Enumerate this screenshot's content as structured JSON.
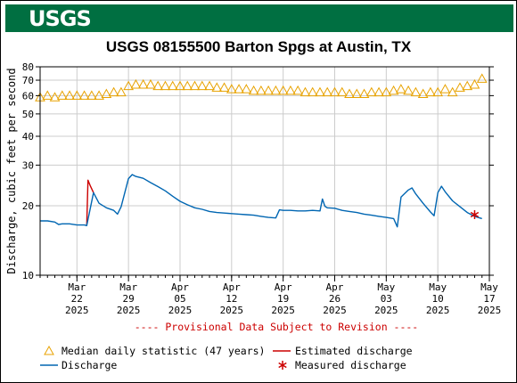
{
  "header": {
    "logo_text": "USGS"
  },
  "chart_data": {
    "type": "line",
    "title": "USGS 08155500 Barton Spgs at Austin, TX",
    "ylabel": "Discharge, cubic feet per second",
    "xlabel": "",
    "y_scale": "log",
    "ylim": [
      10,
      80
    ],
    "y_ticks": [
      10,
      20,
      30,
      40,
      50,
      60,
      70,
      80
    ],
    "xlim": [
      "2025-03-17",
      "2025-05-17"
    ],
    "x_ticks": [
      {
        "date": "2025-03-22",
        "label": [
          "Mar",
          "22",
          "2025"
        ]
      },
      {
        "date": "2025-03-29",
        "label": [
          "Mar",
          "29",
          "2025"
        ]
      },
      {
        "date": "2025-04-05",
        "label": [
          "Apr",
          "05",
          "2025"
        ]
      },
      {
        "date": "2025-04-12",
        "label": [
          "Apr",
          "12",
          "2025"
        ]
      },
      {
        "date": "2025-04-19",
        "label": [
          "Apr",
          "19",
          "2025"
        ]
      },
      {
        "date": "2025-04-26",
        "label": [
          "Apr",
          "26",
          "2025"
        ]
      },
      {
        "date": "2025-05-03",
        "label": [
          "May",
          "03",
          "2025"
        ]
      },
      {
        "date": "2025-05-10",
        "label": [
          "May",
          "10",
          "2025"
        ]
      },
      {
        "date": "2025-05-17",
        "label": [
          "May",
          "17",
          "2025"
        ]
      }
    ],
    "grid": true,
    "note": "---- Provisional Data Subject to Revision ----",
    "series": [
      {
        "name": "Median daily statistic (47 years)",
        "kind": "markers",
        "marker": "triangle",
        "color": "#e8a200",
        "points": [
          [
            "2025-03-17",
            59
          ],
          [
            "2025-03-18",
            60
          ],
          [
            "2025-03-19",
            59
          ],
          [
            "2025-03-20",
            60
          ],
          [
            "2025-03-21",
            60
          ],
          [
            "2025-03-22",
            60
          ],
          [
            "2025-03-23",
            60
          ],
          [
            "2025-03-24",
            60
          ],
          [
            "2025-03-25",
            60
          ],
          [
            "2025-03-26",
            61
          ],
          [
            "2025-03-27",
            62
          ],
          [
            "2025-03-28",
            62
          ],
          [
            "2025-03-29",
            66
          ],
          [
            "2025-03-30",
            67
          ],
          [
            "2025-03-31",
            67
          ],
          [
            "2025-04-01",
            67
          ],
          [
            "2025-04-02",
            66
          ],
          [
            "2025-04-03",
            66
          ],
          [
            "2025-04-04",
            66
          ],
          [
            "2025-04-05",
            66
          ],
          [
            "2025-04-06",
            66
          ],
          [
            "2025-04-07",
            66
          ],
          [
            "2025-04-08",
            66
          ],
          [
            "2025-04-09",
            66
          ],
          [
            "2025-04-10",
            65
          ],
          [
            "2025-04-11",
            65
          ],
          [
            "2025-04-12",
            64
          ],
          [
            "2025-04-13",
            64
          ],
          [
            "2025-04-14",
            64
          ],
          [
            "2025-04-15",
            63
          ],
          [
            "2025-04-16",
            63
          ],
          [
            "2025-04-17",
            63
          ],
          [
            "2025-04-18",
            63
          ],
          [
            "2025-04-19",
            63
          ],
          [
            "2025-04-20",
            63
          ],
          [
            "2025-04-21",
            63
          ],
          [
            "2025-04-22",
            62
          ],
          [
            "2025-04-23",
            62
          ],
          [
            "2025-04-24",
            62
          ],
          [
            "2025-04-25",
            62
          ],
          [
            "2025-04-26",
            62
          ],
          [
            "2025-04-27",
            62
          ],
          [
            "2025-04-28",
            61
          ],
          [
            "2025-04-29",
            61
          ],
          [
            "2025-04-30",
            61
          ],
          [
            "2025-05-01",
            62
          ],
          [
            "2025-05-02",
            62
          ],
          [
            "2025-05-03",
            62
          ],
          [
            "2025-05-04",
            63
          ],
          [
            "2025-05-05",
            64
          ],
          [
            "2025-05-06",
            63
          ],
          [
            "2025-05-07",
            62
          ],
          [
            "2025-05-08",
            61
          ],
          [
            "2025-05-09",
            62
          ],
          [
            "2025-05-10",
            62
          ],
          [
            "2025-05-11",
            64
          ],
          [
            "2025-05-12",
            62
          ],
          [
            "2025-05-13",
            65
          ],
          [
            "2025-05-14",
            66
          ],
          [
            "2025-05-15",
            67
          ],
          [
            "2025-05-16",
            71
          ]
        ]
      },
      {
        "name": "Estimated discharge",
        "kind": "line",
        "color": "#cc0000",
        "points": [
          [
            "2025-03-23T08:00",
            16.4
          ],
          [
            "2025-03-23T12:00",
            25.8
          ],
          [
            "2025-03-23T20:00",
            24.3
          ],
          [
            "2025-03-24T06:00",
            22.8
          ]
        ]
      },
      {
        "name": "Discharge",
        "kind": "line",
        "color": "#0066b2",
        "points": [
          [
            "2025-03-17",
            17.2
          ],
          [
            "2025-03-18",
            17.2
          ],
          [
            "2025-03-19",
            17.0
          ],
          [
            "2025-03-19T12:00",
            16.6
          ],
          [
            "2025-03-20",
            16.7
          ],
          [
            "2025-03-21",
            16.7
          ],
          [
            "2025-03-22",
            16.5
          ],
          [
            "2025-03-23",
            16.5
          ],
          [
            "2025-03-23T08:00",
            16.4
          ],
          [
            "2025-03-24T06:00",
            22.8
          ],
          [
            "2025-03-25",
            20.5
          ],
          [
            "2025-03-26",
            19.6
          ],
          [
            "2025-03-27",
            19.1
          ],
          [
            "2025-03-27T12:00",
            18.4
          ],
          [
            "2025-03-28",
            19.8
          ],
          [
            "2025-03-29",
            26.2
          ],
          [
            "2025-03-29T12:00",
            27.3
          ],
          [
            "2025-03-30",
            26.8
          ],
          [
            "2025-03-31",
            26.3
          ],
          [
            "2025-04-01",
            25.2
          ],
          [
            "2025-04-02",
            24.2
          ],
          [
            "2025-04-03",
            23.2
          ],
          [
            "2025-04-04",
            22.0
          ],
          [
            "2025-04-05",
            20.9
          ],
          [
            "2025-04-06",
            20.2
          ],
          [
            "2025-04-07",
            19.6
          ],
          [
            "2025-04-08",
            19.3
          ],
          [
            "2025-04-09",
            18.9
          ],
          [
            "2025-04-10",
            18.7
          ],
          [
            "2025-04-11",
            18.6
          ],
          [
            "2025-04-12",
            18.5
          ],
          [
            "2025-04-13",
            18.4
          ],
          [
            "2025-04-14",
            18.3
          ],
          [
            "2025-04-15",
            18.2
          ],
          [
            "2025-04-16",
            18.0
          ],
          [
            "2025-04-17",
            17.8
          ],
          [
            "2025-04-18",
            17.7
          ],
          [
            "2025-04-18T12:00",
            19.2
          ],
          [
            "2025-04-19",
            19.1
          ],
          [
            "2025-04-20",
            19.1
          ],
          [
            "2025-04-21",
            19.0
          ],
          [
            "2025-04-22",
            19.0
          ],
          [
            "2025-04-23",
            19.1
          ],
          [
            "2025-04-24",
            19.0
          ],
          [
            "2025-04-24T08:00",
            21.4
          ],
          [
            "2025-04-24T16:00",
            19.9
          ],
          [
            "2025-04-25",
            19.6
          ],
          [
            "2025-04-26",
            19.5
          ],
          [
            "2025-04-27",
            19.1
          ],
          [
            "2025-04-28",
            18.9
          ],
          [
            "2025-04-29",
            18.7
          ],
          [
            "2025-04-30",
            18.4
          ],
          [
            "2025-05-01",
            18.2
          ],
          [
            "2025-05-02",
            18.0
          ],
          [
            "2025-05-03",
            17.8
          ],
          [
            "2025-05-04",
            17.6
          ],
          [
            "2025-05-04T12:00",
            16.2
          ],
          [
            "2025-05-05",
            21.8
          ],
          [
            "2025-05-06",
            23.4
          ],
          [
            "2025-05-06T12:00",
            23.9
          ],
          [
            "2025-05-07",
            22.5
          ],
          [
            "2025-05-08",
            20.5
          ],
          [
            "2025-05-09",
            18.8
          ],
          [
            "2025-05-09T12:00",
            18.1
          ],
          [
            "2025-05-10",
            22.8
          ],
          [
            "2025-05-10T12:00",
            24.3
          ],
          [
            "2025-05-11",
            23.0
          ],
          [
            "2025-05-12",
            21.0
          ],
          [
            "2025-05-13",
            19.8
          ],
          [
            "2025-05-14",
            18.7
          ],
          [
            "2025-05-15",
            18.0
          ],
          [
            "2025-05-16",
            17.6
          ]
        ]
      },
      {
        "name": "Measured discharge",
        "kind": "markers",
        "marker": "asterisk",
        "color": "#cc0000",
        "points": [
          [
            "2025-05-15",
            18.3
          ]
        ]
      }
    ]
  },
  "legend": {
    "median_label": "Median daily statistic (47 years)",
    "estimated_label": "Estimated discharge",
    "discharge_label": "Discharge",
    "measured_label": "Measured discharge"
  },
  "colors": {
    "usgs_green": "#006f41",
    "median": "#e8a200",
    "discharge": "#0066b2",
    "estimated": "#cc0000",
    "measured": "#cc0000",
    "grid": "#cccccc"
  }
}
